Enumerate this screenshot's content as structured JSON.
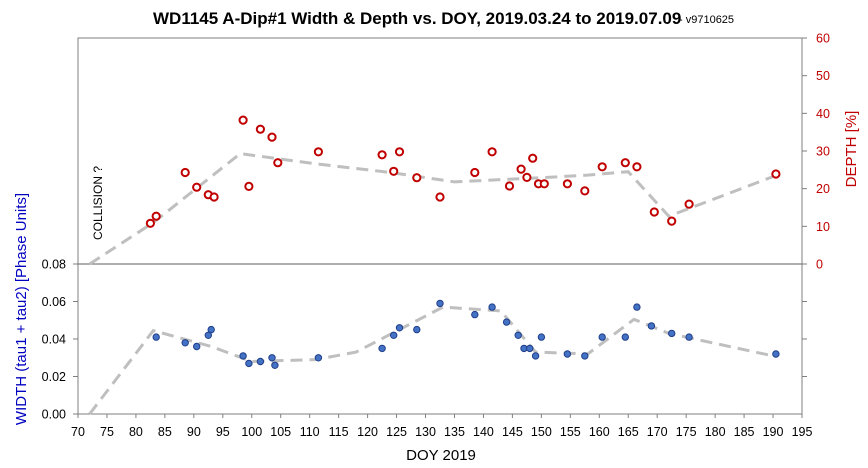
{
  "chart_data": {
    "type": "scatter",
    "title": "WD1145 A-Dip#1 Width & Depth vs. DOY, 2019.03.24 to 2019.07.09",
    "subtitle": "- v9710625",
    "xlabel": "DOY 2019",
    "xlim": [
      70,
      195
    ],
    "xticks": [
      "70",
      "75",
      "80",
      "85",
      "90",
      "95",
      "100",
      "105",
      "110",
      "115",
      "120",
      "125",
      "130",
      "135",
      "140",
      "145",
      "150",
      "155",
      "160",
      "165",
      "170",
      "175",
      "180",
      "185",
      "190",
      "195"
    ],
    "annotation": "COLLISION ?",
    "colors": {
      "depth": "#c00000",
      "width_fill": "#4472c4",
      "width_edge": "#1f3f8a",
      "trend": "#bfbfbf",
      "ylabel_width": "#0000c0"
    },
    "depth_panel": {
      "ylabel": "DEPTH [%]",
      "ylim": [
        0,
        60
      ],
      "yticks": [
        "0",
        "10",
        "20",
        "30",
        "40",
        "50",
        "60"
      ],
      "series": {
        "name": "",
        "x": [
          82.5,
          83.5,
          88.5,
          90.5,
          92.5,
          93.5,
          98.5,
          99.5,
          101.5,
          103.5,
          104.5,
          111.5,
          122.5,
          124.5,
          125.5,
          128.5,
          132.5,
          138.5,
          141.5,
          144.5,
          146.5,
          147.5,
          148.5,
          149.5,
          150.5,
          154.5,
          157.5,
          160.5,
          164.5,
          166.5,
          169.5,
          172.5,
          175.5,
          190.5
        ],
        "y": [
          10.8,
          12.7,
          24.3,
          20.4,
          18.4,
          17.8,
          38.2,
          20.6,
          35.8,
          33.7,
          26.9,
          29.8,
          29.0,
          24.6,
          29.8,
          22.9,
          17.8,
          24.3,
          29.8,
          20.7,
          25.2,
          23.0,
          28.1,
          21.3,
          21.3,
          21.3,
          19.4,
          25.8,
          26.9,
          25.8,
          13.8,
          11.4,
          15.9,
          23.9
        ]
      },
      "trend": {
        "x": [
          72,
          83,
          98,
          111,
          124,
          135,
          151,
          158,
          165,
          172,
          190
        ],
        "y": [
          0,
          11,
          29.3,
          26.6,
          24.3,
          21.8,
          23,
          23.6,
          24.5,
          12.7,
          23.2
        ]
      }
    },
    "width_panel": {
      "ylabel": "WIDTH (tau1 + tau2) [Phase Units]",
      "ylim": [
        0,
        0.08
      ],
      "yticks": [
        "0.00",
        "0.02",
        "0.04",
        "0.06",
        "0.08"
      ],
      "series": {
        "name": "",
        "x": [
          83.5,
          88.5,
          90.5,
          92.5,
          93.0,
          98.5,
          99.5,
          101.5,
          103.5,
          104.0,
          111.5,
          122.5,
          124.5,
          125.5,
          128.5,
          132.5,
          138.5,
          141.5,
          144.0,
          146.0,
          147.0,
          148.0,
          149.0,
          150.0,
          154.5,
          157.5,
          160.5,
          164.5,
          166.5,
          169.0,
          172.5,
          175.5,
          190.5
        ],
        "y": [
          0.041,
          0.038,
          0.036,
          0.042,
          0.045,
          0.031,
          0.027,
          0.028,
          0.03,
          0.026,
          0.03,
          0.035,
          0.042,
          0.046,
          0.045,
          0.059,
          0.053,
          0.057,
          0.049,
          0.042,
          0.035,
          0.035,
          0.031,
          0.041,
          0.032,
          0.031,
          0.041,
          0.041,
          0.057,
          0.047,
          0.043,
          0.041,
          0.032
        ]
      },
      "trend": {
        "x": [
          72,
          83,
          93,
          100,
          111,
          118,
          123,
          133,
          143,
          149,
          158,
          166,
          172,
          190
        ],
        "y": [
          0,
          0.0445,
          0.036,
          0.028,
          0.029,
          0.033,
          0.041,
          0.057,
          0.055,
          0.033,
          0.032,
          0.0505,
          0.043,
          0.031
        ]
      }
    }
  }
}
